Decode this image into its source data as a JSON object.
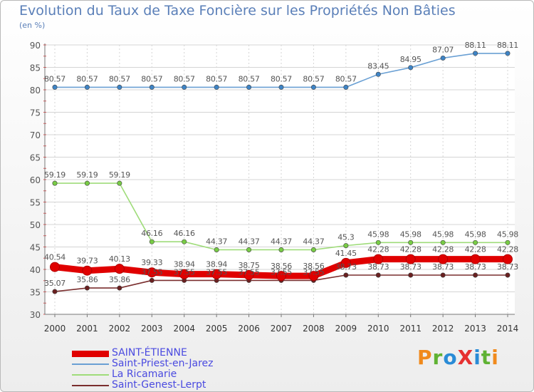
{
  "page": {
    "title": "Evolution du Taux de Taxe Foncière sur les Propriétés Non Bâties",
    "unit_label": "(en %)",
    "logo_text": "ProXiti",
    "logo_colors": [
      "#f08a1c",
      "#5fb233",
      "#2a8bd6",
      "#e63131",
      "#2a8bd6",
      "#5fb233",
      "#f08a1c"
    ]
  },
  "chart_data": {
    "type": "line",
    "title": "Evolution du Taux de Taxe Foncière sur les Propriétés Non Bâties",
    "ylabel": "(en %)",
    "xlabel": "",
    "ylim": [
      30,
      90
    ],
    "yticks": [
      30,
      35,
      40,
      45,
      50,
      55,
      60,
      65,
      70,
      75,
      80,
      85,
      90
    ],
    "x": [
      "2000",
      "2001",
      "2002",
      "2003",
      "2004",
      "2005",
      "2006",
      "2007",
      "2008",
      "2009",
      "2010",
      "2011",
      "2012",
      "2013",
      "2014"
    ],
    "grid": true,
    "series": [
      {
        "name": "SAINT-ÉTIENNE",
        "color": "#e00000",
        "marker_color": "#e00000",
        "emphasis": "bold",
        "values": [
          40.54,
          39.73,
          40.13,
          39.33,
          38.94,
          38.94,
          38.75,
          38.56,
          38.56,
          41.45,
          42.28,
          42.28,
          42.28,
          42.28,
          42.28
        ],
        "labels": [
          "40.54",
          "39.73",
          "40.13",
          "39.33",
          "38.94",
          "38.94",
          "38.75",
          "38.56",
          "38.56",
          "41.45",
          "42.28",
          "42.28",
          "42.28",
          "42.28",
          "42.28"
        ]
      },
      {
        "name": "Saint-Priest-en-Jarez",
        "color": "#6aa0d4",
        "marker_color": "#3e84c6",
        "emphasis": "normal",
        "values": [
          80.57,
          80.57,
          80.57,
          80.57,
          80.57,
          80.57,
          80.57,
          80.57,
          80.57,
          80.57,
          83.45,
          84.95,
          87.07,
          88.11,
          88.11
        ],
        "labels": [
          "80.57",
          "80.57",
          "80.57",
          "80.57",
          "80.57",
          "80.57",
          "80.57",
          "80.57",
          "80.57",
          "80.57",
          "83.45",
          "84.95",
          "87.07",
          "88.11",
          "88.11"
        ]
      },
      {
        "name": "La Ricamarie",
        "color": "#9fdc7a",
        "marker_color": "#78cc45",
        "emphasis": "normal",
        "values": [
          59.19,
          59.19,
          59.19,
          46.16,
          46.16,
          44.37,
          44.37,
          44.37,
          44.37,
          45.3,
          45.98,
          45.98,
          45.98,
          45.98,
          45.98
        ],
        "labels": [
          "59.19",
          "59.19",
          "59.19",
          "46.16",
          "46.16",
          "44.37",
          "44.37",
          "44.37",
          "44.37",
          "45.3",
          "45.98",
          "45.98",
          "45.98",
          "45.98",
          "45.98"
        ]
      },
      {
        "name": "Saint-Genest-Lerpt",
        "color": "#7a2e2e",
        "marker_color": "#6a2020",
        "emphasis": "normal",
        "values": [
          35.07,
          35.86,
          35.86,
          37.55,
          37.55,
          37.55,
          37.55,
          37.55,
          37.55,
          38.73,
          38.73,
          38.73,
          38.73,
          38.73,
          38.73
        ],
        "labels": [
          "35.07",
          "35.86",
          "35.86",
          "37.55",
          "37.55",
          "37.55",
          "37.55",
          "37.55",
          "37.55",
          "38.73",
          "38.73",
          "38.73",
          "38.73",
          "38.73",
          "38.73"
        ]
      }
    ],
    "legend_position": "bottom-left"
  }
}
